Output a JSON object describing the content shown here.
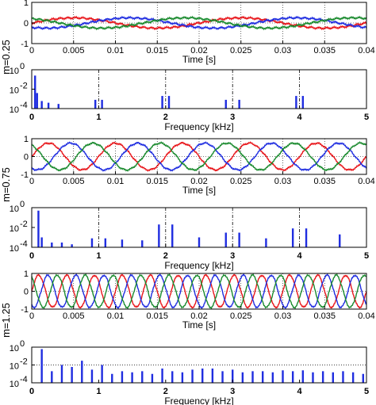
{
  "colors": {
    "phase_a": "#e8161b",
    "phase_b": "#1f2de0",
    "phase_c": "#1a8a2e",
    "spectrum": "#1f2de0"
  },
  "chart_data": [
    {
      "type": "line",
      "row_label": "m=0.25",
      "xlabel": "Time [s]",
      "xlim": [
        0,
        0.04
      ],
      "ylim": [
        -1,
        1
      ],
      "x_ticks": [
        "0",
        "0.005",
        "0.01",
        "0.015",
        "0.02",
        "0.025",
        "0.03",
        "0.035",
        "0.04"
      ],
      "y_ticks": [
        "-1",
        "0",
        "1"
      ],
      "amplitude": 0.25,
      "fundamental_hz": 50,
      "series": [
        {
          "color_key": "phase_a",
          "phase_deg": 0
        },
        {
          "color_key": "phase_b",
          "phase_deg": -120
        },
        {
          "color_key": "phase_c",
          "phase_deg": 120
        }
      ]
    },
    {
      "type": "bar",
      "xlabel": "Frequency [kHz]",
      "xlim": [
        0,
        5
      ],
      "yscale": "log",
      "ylim": [
        0.0001,
        1
      ],
      "x_ticks": [
        "0",
        "1",
        "2",
        "3",
        "4",
        "5"
      ],
      "y_ticks": [
        "10",
        "10",
        "10"
      ],
      "y_tick_exponents": [
        "0",
        "-2",
        "-4"
      ],
      "dashdot_markers_khz": [
        1,
        2,
        3,
        4
      ],
      "bars": [
        {
          "f": 0.05,
          "v": 0.25
        },
        {
          "f": 0.08,
          "v": 0.004
        },
        {
          "f": 0.15,
          "v": 0.0006
        },
        {
          "f": 0.25,
          "v": 0.0004
        },
        {
          "f": 0.4,
          "v": 0.0003
        },
        {
          "f": 0.95,
          "v": 0.0008
        },
        {
          "f": 1.05,
          "v": 0.0008
        },
        {
          "f": 1.95,
          "v": 0.002
        },
        {
          "f": 2.05,
          "v": 0.002
        },
        {
          "f": 2.9,
          "v": 0.0008
        },
        {
          "f": 3.1,
          "v": 0.0008
        },
        {
          "f": 3.95,
          "v": 0.002
        },
        {
          "f": 4.05,
          "v": 0.002
        }
      ]
    },
    {
      "type": "line",
      "row_label": "m=0.75",
      "xlabel": "Time [s]",
      "xlim": [
        0,
        0.04
      ],
      "ylim": [
        -1,
        1
      ],
      "x_ticks": [
        "0",
        "0.005",
        "0.01",
        "0.015",
        "0.02",
        "0.025",
        "0.03",
        "0.035",
        "0.04"
      ],
      "y_ticks": [
        "-1",
        "0",
        "1"
      ],
      "amplitude": 0.75,
      "fundamental_hz": 125,
      "series": [
        {
          "color_key": "phase_a",
          "phase_deg": 0
        },
        {
          "color_key": "phase_b",
          "phase_deg": -120
        },
        {
          "color_key": "phase_c",
          "phase_deg": 120
        }
      ]
    },
    {
      "type": "bar",
      "xlabel": "Frequency [kHz]",
      "xlim": [
        0,
        5
      ],
      "yscale": "log",
      "ylim": [
        0.0001,
        1
      ],
      "x_ticks": [
        "0",
        "1",
        "2",
        "3",
        "4",
        "5"
      ],
      "y_ticks": [
        "10",
        "10",
        "10"
      ],
      "y_tick_exponents": [
        "0",
        "-2",
        "-4"
      ],
      "dashdot_markers_khz": [
        1,
        2,
        3,
        4
      ],
      "bars": [
        {
          "f": 0.1,
          "v": 0.5
        },
        {
          "f": 0.15,
          "v": 0.001
        },
        {
          "f": 0.3,
          "v": 0.0003
        },
        {
          "f": 0.45,
          "v": 0.0003
        },
        {
          "f": 0.6,
          "v": 0.0002
        },
        {
          "f": 0.9,
          "v": 0.0008
        },
        {
          "f": 1.1,
          "v": 0.0008
        },
        {
          "f": 1.35,
          "v": 0.0006
        },
        {
          "f": 1.65,
          "v": 0.0005
        },
        {
          "f": 1.9,
          "v": 0.02
        },
        {
          "f": 2.1,
          "v": 0.02
        },
        {
          "f": 2.5,
          "v": 0.001
        },
        {
          "f": 2.9,
          "v": 0.003
        },
        {
          "f": 3.1,
          "v": 0.003
        },
        {
          "f": 3.5,
          "v": 0.0008
        },
        {
          "f": 3.9,
          "v": 0.008
        },
        {
          "f": 4.1,
          "v": 0.008
        },
        {
          "f": 4.6,
          "v": 0.002
        }
      ]
    },
    {
      "type": "line",
      "row_label": "m=1.25",
      "xlabel": "Time [s]",
      "xlim": [
        0,
        0.04
      ],
      "ylim": [
        -1,
        1
      ],
      "x_ticks": [
        "0",
        "0.005",
        "0.01",
        "0.015",
        "0.02",
        "0.025",
        "0.03",
        "0.035",
        "0.04"
      ],
      "y_ticks": [
        "-1",
        "0",
        "1"
      ],
      "amplitude": 0.9,
      "fundamental_hz": 300,
      "series": [
        {
          "color_key": "phase_a",
          "phase_deg": 0
        },
        {
          "color_key": "phase_b",
          "phase_deg": -120
        },
        {
          "color_key": "phase_c",
          "phase_deg": 120
        }
      ]
    },
    {
      "type": "bar",
      "xlabel": "Frequency [kHz]",
      "xlim": [
        0,
        5
      ],
      "yscale": "log",
      "ylim": [
        0.0001,
        1
      ],
      "x_ticks": [
        "0",
        "1",
        "2",
        "3",
        "4",
        "5"
      ],
      "y_ticks": [
        "10",
        "10",
        "10"
      ],
      "y_tick_exponents": [
        "0",
        "-2",
        "-4"
      ],
      "dotted_hline_value": 0.01,
      "bars": [
        {
          "f": 0.15,
          "v": 0.6
        },
        {
          "f": 0.3,
          "v": 0.002
        },
        {
          "f": 0.45,
          "v": 0.01
        },
        {
          "f": 0.6,
          "v": 0.006
        },
        {
          "f": 0.75,
          "v": 0.03
        },
        {
          "f": 0.9,
          "v": 0.003
        },
        {
          "f": 1.05,
          "v": 0.01
        },
        {
          "f": 1.2,
          "v": 0.001
        },
        {
          "f": 1.35,
          "v": 0.002
        },
        {
          "f": 1.5,
          "v": 0.0015
        },
        {
          "f": 1.65,
          "v": 0.002
        },
        {
          "f": 1.8,
          "v": 0.001
        },
        {
          "f": 1.95,
          "v": 0.004
        },
        {
          "f": 2.1,
          "v": 0.002
        },
        {
          "f": 2.25,
          "v": 0.0015
        },
        {
          "f": 2.4,
          "v": 0.003
        },
        {
          "f": 2.55,
          "v": 0.004
        },
        {
          "f": 2.7,
          "v": 0.004
        },
        {
          "f": 2.85,
          "v": 0.002
        },
        {
          "f": 3.0,
          "v": 0.003
        },
        {
          "f": 3.15,
          "v": 0.0015
        },
        {
          "f": 3.3,
          "v": 0.002
        },
        {
          "f": 3.45,
          "v": 0.002
        },
        {
          "f": 3.6,
          "v": 0.0015
        },
        {
          "f": 3.75,
          "v": 0.0025
        },
        {
          "f": 3.9,
          "v": 0.002
        },
        {
          "f": 4.05,
          "v": 0.0025
        },
        {
          "f": 4.2,
          "v": 0.0015
        },
        {
          "f": 4.35,
          "v": 0.002
        },
        {
          "f": 4.5,
          "v": 0.0015
        },
        {
          "f": 4.65,
          "v": 0.002
        },
        {
          "f": 4.8,
          "v": 0.0015
        },
        {
          "f": 4.95,
          "v": 0.001
        }
      ]
    }
  ]
}
